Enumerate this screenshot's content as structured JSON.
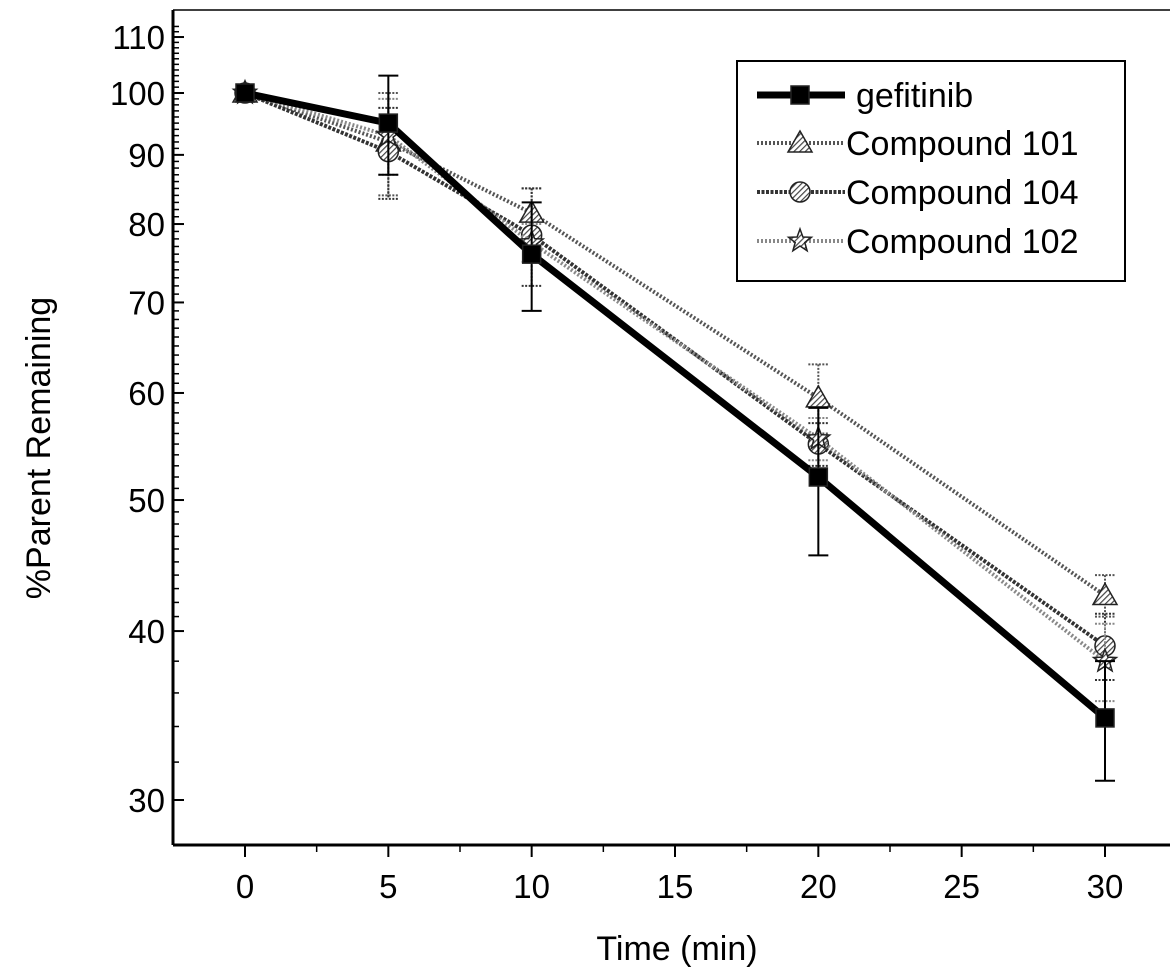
{
  "chart_data": {
    "type": "line",
    "xlabel": "Time (min)",
    "ylabel": "%Parent Remaining",
    "xlim": [
      -2.5,
      31.5
    ],
    "ylim": [
      28,
      113
    ],
    "yscale": "log",
    "x_ticks": [
      0,
      5,
      10,
      15,
      20,
      25,
      30
    ],
    "x_tick_labels": [
      "0",
      "5",
      "10",
      "15",
      "20",
      "25",
      "30"
    ],
    "y_ticks": [
      30,
      40,
      50,
      60,
      70,
      80,
      90,
      100,
      110
    ],
    "y_tick_labels": [
      "30",
      "40",
      "50",
      "60",
      "70",
      "80",
      "90",
      "100",
      "110"
    ],
    "legend_position": "top-right",
    "grid": false,
    "x": [
      0,
      5,
      10,
      20,
      30
    ],
    "series": [
      {
        "name": "gefitinib",
        "marker": "square",
        "style": "thick-solid",
        "color": "#000000",
        "values": [
          100,
          95,
          76,
          52,
          34.5
        ],
        "error": [
          0,
          8,
          7,
          6.5,
          3.5
        ]
      },
      {
        "name": "Compound 101",
        "marker": "triangle",
        "style": "dotted",
        "color": "#555555",
        "values": [
          100,
          92,
          81.5,
          59.5,
          42.5
        ],
        "error": [
          0,
          8,
          3.5,
          3.5,
          1.5
        ]
      },
      {
        "name": "Compound 104",
        "marker": "circle",
        "style": "dark-dotted",
        "color": "#333333",
        "values": [
          100,
          90.5,
          78.5,
          55,
          39
        ],
        "error": [
          0,
          7,
          6.5,
          2,
          2.2
        ]
      },
      {
        "name": "Compound 102",
        "marker": "star",
        "style": "light-dotted",
        "color": "#888888",
        "values": [
          100,
          93,
          77.5,
          55.5,
          38
        ],
        "error": [
          0,
          6,
          2.5,
          2,
          2.5
        ]
      }
    ]
  }
}
